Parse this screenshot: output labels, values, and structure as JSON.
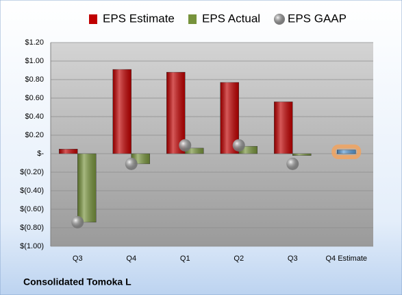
{
  "chart_data": {
    "type": "bar",
    "footer": "Consolidated Tomoka L",
    "categories": [
      "Q3",
      "Q4",
      "Q1",
      "Q2",
      "Q3",
      "Q4 Estimate"
    ],
    "series": [
      {
        "name": "EPS Estimate",
        "color": "#c00000",
        "highlight_color": "#5b9bd5",
        "highlight_glow": "#f5a25a",
        "values": [
          0.05,
          0.91,
          0.88,
          0.77,
          0.56,
          0.04
        ]
      },
      {
        "name": "EPS Actual",
        "color": "#77933c",
        "values": [
          -0.74,
          -0.11,
          0.06,
          0.08,
          -0.02,
          null
        ]
      },
      {
        "name": "EPS GAAP",
        "color": "#a6a6a6",
        "marker": "circle",
        "values": [
          -0.74,
          -0.11,
          0.09,
          0.09,
          -0.11,
          null
        ]
      }
    ],
    "ylim": [
      -1.0,
      1.2
    ],
    "yticks": [
      {
        "value": 1.2,
        "label": "$1.20"
      },
      {
        "value": 1.0,
        "label": "$1.00"
      },
      {
        "value": 0.8,
        "label": "$0.80"
      },
      {
        "value": 0.6,
        "label": "$0.60"
      },
      {
        "value": 0.4,
        "label": "$0.40"
      },
      {
        "value": 0.2,
        "label": "$0.20"
      },
      {
        "value": 0,
        "label": "$-"
      },
      {
        "value": -0.2,
        "label": "$(0.20)"
      },
      {
        "value": -0.4,
        "label": "$(0.40)"
      },
      {
        "value": -0.6,
        "label": "$(0.60)"
      },
      {
        "value": -0.8,
        "label": "$(0.80)"
      },
      {
        "value": -1.0,
        "label": "$(1.00)"
      }
    ],
    "grid": true,
    "legend": "top"
  }
}
